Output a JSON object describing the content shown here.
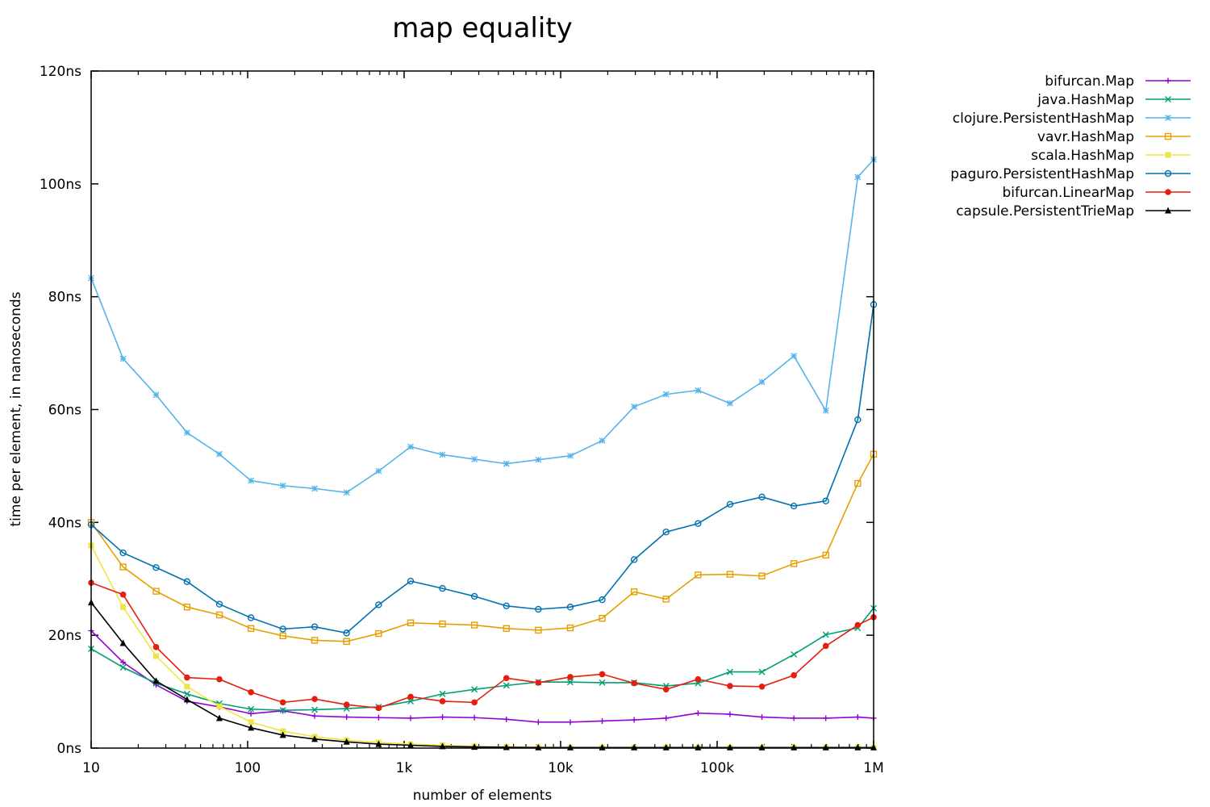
{
  "chart_data": {
    "type": "line",
    "title": "map equality",
    "xlabel": "number of elements",
    "ylabel": "time per element, in nanoseconds",
    "xscale": "log",
    "xlim": [
      10,
      1000000
    ],
    "ylim": [
      0,
      120
    ],
    "xticks": [
      {
        "value": 10,
        "label": "10"
      },
      {
        "value": 100,
        "label": "100"
      },
      {
        "value": 1000,
        "label": "1k"
      },
      {
        "value": 10000,
        "label": "10k"
      },
      {
        "value": 100000,
        "label": "100k"
      },
      {
        "value": 1000000,
        "label": "1M"
      }
    ],
    "yticks": [
      {
        "value": 0,
        "label": "0ns"
      },
      {
        "value": 20,
        "label": "20ns"
      },
      {
        "value": 40,
        "label": "40ns"
      },
      {
        "value": 60,
        "label": "60ns"
      },
      {
        "value": 80,
        "label": "80ns"
      },
      {
        "value": 100,
        "label": "100ns"
      },
      {
        "value": 120,
        "label": "120ns"
      }
    ],
    "legend_position": "top-right outside",
    "x": [
      10,
      16,
      26,
      41,
      66,
      105,
      168,
      268,
      429,
      687,
      1100,
      1758,
      2813,
      4501,
      7202,
      11523,
      18437,
      29500,
      47200,
      75520,
      120832,
      193331,
      309330,
      494928,
      791885,
      1000000
    ],
    "series": [
      {
        "name": "bifurcan.Map",
        "color": "#9400d3",
        "marker": "plus",
        "values": [
          20.8,
          15.2,
          11.2,
          8.3,
          7.3,
          6.1,
          6.6,
          5.7,
          5.5,
          5.4,
          5.3,
          5.5,
          5.4,
          5.1,
          4.6,
          4.6,
          4.8,
          5.0,
          5.3,
          6.2,
          6.0,
          5.5,
          5.3,
          5.3,
          5.5,
          5.3
        ]
      },
      {
        "name": "java.HashMap",
        "color": "#009e73",
        "marker": "cross",
        "values": [
          17.6,
          14.3,
          11.5,
          9.6,
          7.9,
          6.9,
          6.7,
          6.8,
          7.0,
          7.3,
          8.3,
          9.6,
          10.4,
          11.1,
          11.7,
          11.7,
          11.6,
          11.6,
          11.0,
          11.5,
          13.5,
          13.5,
          16.6,
          20.1,
          21.3,
          24.8
        ]
      },
      {
        "name": "clojure.PersistentHashMap",
        "color": "#56b4e9",
        "marker": "star",
        "values": [
          83.3,
          69.0,
          62.6,
          55.9,
          52.1,
          47.4,
          46.5,
          46.0,
          45.3,
          49.1,
          53.4,
          52.0,
          51.2,
          50.4,
          51.1,
          51.8,
          54.5,
          60.5,
          62.7,
          63.4,
          61.1,
          64.9,
          69.5,
          59.8,
          101.2,
          104.3
        ]
      },
      {
        "name": "vavr.HashMap",
        "color": "#e69f00",
        "marker": "box",
        "values": [
          40.0,
          32.1,
          27.8,
          25.0,
          23.6,
          21.2,
          19.9,
          19.1,
          18.9,
          20.3,
          22.2,
          22.0,
          21.8,
          21.2,
          20.9,
          21.3,
          23.0,
          27.7,
          26.4,
          30.7,
          30.8,
          30.5,
          32.7,
          34.2,
          46.9,
          52.1
        ]
      },
      {
        "name": "scala.HashMap",
        "color": "#f0e442",
        "marker": "filledbox",
        "values": [
          35.9,
          25.0,
          16.3,
          10.9,
          7.4,
          4.6,
          3.0,
          2.0,
          1.4,
          1.0,
          0.7,
          0.5,
          0.3,
          0.2,
          0.15,
          0.1,
          0.1,
          0.1,
          0.1,
          0.1,
          0.1,
          0.1,
          0.1,
          0.1,
          0.1,
          0.1
        ]
      },
      {
        "name": "paguro.PersistentHashMap",
        "color": "#0072b2",
        "marker": "circle",
        "values": [
          39.6,
          34.6,
          32.0,
          29.5,
          25.5,
          23.1,
          21.1,
          21.5,
          20.4,
          25.4,
          29.6,
          28.3,
          26.9,
          25.2,
          24.6,
          25.0,
          26.3,
          33.4,
          38.3,
          39.8,
          43.2,
          44.5,
          42.9,
          43.8,
          58.2,
          78.6
        ]
      },
      {
        "name": "bifurcan.LinearMap",
        "color": "#e51e10",
        "marker": "filledcircle",
        "values": [
          29.3,
          27.2,
          17.9,
          12.5,
          12.2,
          9.9,
          8.1,
          8.7,
          7.7,
          7.1,
          9.1,
          8.3,
          8.1,
          12.4,
          11.6,
          12.6,
          13.1,
          11.5,
          10.4,
          12.2,
          11.0,
          10.9,
          12.9,
          18.1,
          21.8,
          23.2
        ]
      },
      {
        "name": "capsule.PersistentTrieMap",
        "color": "#000000",
        "marker": "filledtriangle",
        "values": [
          25.8,
          18.6,
          11.9,
          8.6,
          5.3,
          3.6,
          2.3,
          1.6,
          1.1,
          0.7,
          0.5,
          0.3,
          0.2,
          0.15,
          0.1,
          0.1,
          0.1,
          0.1,
          0.1,
          0.1,
          0.1,
          0.1,
          0.1,
          0.1,
          0.1,
          0.1
        ]
      }
    ]
  }
}
